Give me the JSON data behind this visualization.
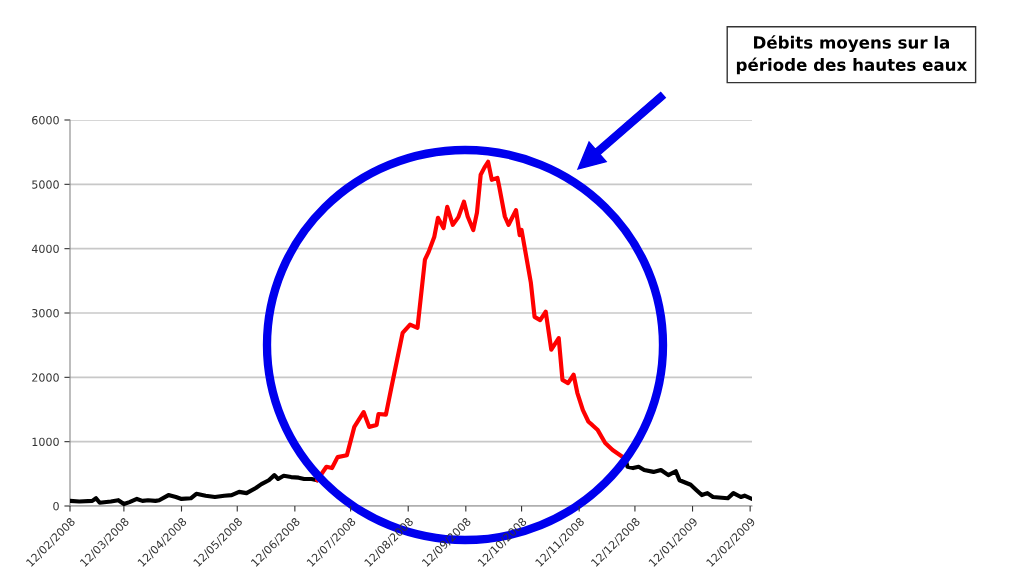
{
  "chart_data": {
    "type": "line",
    "annotations": [
      "Débits moyens sur la période des hautes eaux"
    ],
    "xlim": [
      "2008-02-12",
      "2009-02-13"
    ],
    "xticks": [
      {
        "value": "2008-02-12",
        "label": "12/02/2008"
      },
      {
        "value": "2008-03-12",
        "label": "12/03/2008"
      },
      {
        "value": "2008-04-12",
        "label": "12/04/2008"
      },
      {
        "value": "2008-05-12",
        "label": "12/05/2008"
      },
      {
        "value": "2008-06-12",
        "label": "12/06/2008"
      },
      {
        "value": "2008-07-12",
        "label": "12/07/2008"
      },
      {
        "value": "2008-08-12",
        "label": "12/08/2008"
      },
      {
        "value": "2008-09-12",
        "label": "12/09/2008"
      },
      {
        "value": "2008-10-12",
        "label": "12/10/2008"
      },
      {
        "value": "2008-11-12",
        "label": "12/11/2008"
      },
      {
        "value": "2008-12-12",
        "label": "12/12/2008"
      },
      {
        "value": "2009-01-12",
        "label": "12/01/2009"
      },
      {
        "value": "2009-02-12",
        "label": "12/02/2009"
      }
    ],
    "ylim": [
      0,
      6000
    ],
    "yticks": [
      0,
      1000,
      2000,
      3000,
      4000,
      5000,
      6000
    ],
    "grid": "y",
    "legend": false,
    "marker": "none",
    "line_style": "solid",
    "series": [
      {
        "color": "#000000",
        "x": [
          "2008-02-12",
          "2008-02-17",
          "2008-02-24",
          "2008-02-26",
          "2008-02-28",
          "2008-03-05",
          "2008-03-09",
          "2008-03-12",
          "2008-03-15",
          "2008-03-19",
          "2008-03-22",
          "2008-03-25",
          "2008-03-29",
          "2008-03-31",
          "2008-04-05",
          "2008-04-09",
          "2008-04-12",
          "2008-04-17",
          "2008-04-20",
          "2008-04-25",
          "2008-04-30",
          "2008-05-05",
          "2008-05-09",
          "2008-05-13",
          "2008-05-17",
          "2008-05-22",
          "2008-05-25",
          "2008-05-29",
          "2008-06-01",
          "2008-06-03",
          "2008-06-06",
          "2008-06-10",
          "2008-06-14",
          "2008-06-17",
          "2008-06-21",
          "2008-06-24"
        ],
        "values": [
          80,
          70,
          80,
          120,
          50,
          70,
          90,
          30,
          60,
          110,
          80,
          90,
          80,
          90,
          170,
          140,
          110,
          120,
          190,
          160,
          140,
          160,
          170,
          220,
          200,
          280,
          340,
          400,
          480,
          420,
          470,
          450,
          440,
          420,
          420,
          400
        ]
      },
      {
        "color": "#ff0000",
        "x": [
          "2008-06-24",
          "2008-06-29",
          "2008-07-02",
          "2008-07-05",
          "2008-07-10",
          "2008-07-14",
          "2008-07-19",
          "2008-07-22",
          "2008-07-26",
          "2008-07-27",
          "2008-07-31",
          "2008-08-03",
          "2008-08-06",
          "2008-08-09",
          "2008-08-13",
          "2008-08-17",
          "2008-08-21",
          "2008-08-23",
          "2008-08-26",
          "2008-08-28",
          "2008-08-31",
          "2008-09-02",
          "2008-09-05",
          "2008-09-08",
          "2008-09-11",
          "2008-09-13",
          "2008-09-16",
          "2008-09-18",
          "2008-09-20",
          "2008-09-22",
          "2008-09-24",
          "2008-09-26",
          "2008-09-29",
          "2008-09-30",
          "2008-10-03",
          "2008-10-05",
          "2008-10-09",
          "2008-10-11",
          "2008-10-12",
          "2008-10-17",
          "2008-10-19",
          "2008-10-22",
          "2008-10-25",
          "2008-10-28",
          "2008-11-01",
          "2008-11-03",
          "2008-11-06",
          "2008-11-09",
          "2008-11-11",
          "2008-11-14",
          "2008-11-17",
          "2008-11-19",
          "2008-11-22",
          "2008-11-26",
          "2008-11-30",
          "2008-12-06",
          "2008-12-07"
        ],
        "values": [
          400,
          610,
          590,
          760,
          790,
          1230,
          1460,
          1230,
          1260,
          1430,
          1420,
          1850,
          2270,
          2690,
          2820,
          2770,
          3830,
          3950,
          4180,
          4480,
          4320,
          4650,
          4370,
          4490,
          4730,
          4500,
          4290,
          4560,
          5150,
          5260,
          5350,
          5070,
          5100,
          4960,
          4500,
          4370,
          4600,
          4210,
          4290,
          3470,
          2940,
          2890,
          3020,
          2430,
          2610,
          1960,
          1910,
          2040,
          1760,
          1490,
          1310,
          1260,
          1180,
          980,
          870,
          750,
          720
        ]
      },
      {
        "color": "#000000",
        "x": [
          "2008-12-07",
          "2008-12-08",
          "2008-12-11",
          "2008-12-14",
          "2008-12-17",
          "2008-12-22",
          "2008-12-26",
          "2008-12-30",
          "2009-01-03",
          "2009-01-05",
          "2009-01-11",
          "2009-01-14",
          "2009-01-17",
          "2009-01-20",
          "2009-01-23",
          "2009-01-31",
          "2009-02-03",
          "2009-02-07",
          "2009-02-09",
          "2009-02-13"
        ],
        "values": [
          720,
          610,
          590,
          610,
          560,
          530,
          560,
          480,
          540,
          400,
          330,
          250,
          170,
          200,
          140,
          120,
          200,
          140,
          160,
          110
        ]
      }
    ]
  }
}
